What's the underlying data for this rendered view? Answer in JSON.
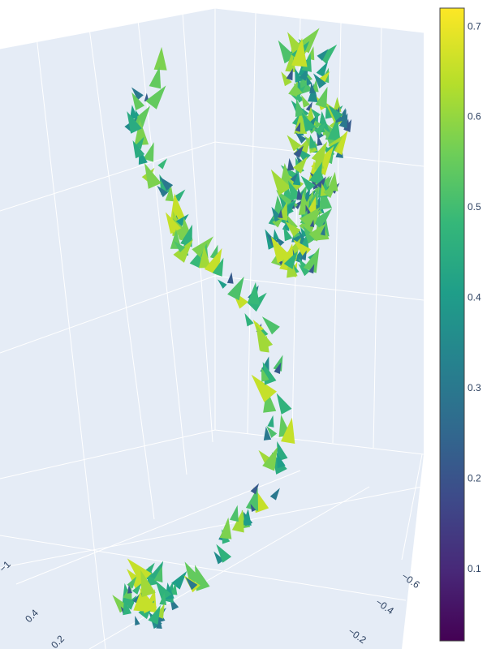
{
  "chart_data": {
    "type": "cone",
    "title": "",
    "scene": {
      "background": "#e5ecf6",
      "gridcolor": "#ffffff",
      "axis_a_ticks": [
        "−1",
        "0.4",
        "0.2"
      ],
      "axis_b_ticks": [
        "−0.6",
        "−0.4",
        "−0.2"
      ]
    },
    "colorbar": {
      "colorscale": "Viridis",
      "range": [
        0.02,
        0.72
      ],
      "ticks": [
        0.1,
        0.2,
        0.3,
        0.4,
        0.5,
        0.6,
        0.7
      ],
      "tick_labels": [
        "0.1",
        "0.2",
        "0.3",
        "0.4",
        "0.5",
        "0.6",
        "0.7"
      ]
    },
    "cones": [
      {
        "value": 0.45
      },
      {
        "value": 0.52
      },
      {
        "value": 0.58
      },
      {
        "value": 0.41
      },
      {
        "value": 0.36
      },
      {
        "value": 0.49
      },
      {
        "value": 0.55
      },
      {
        "value": 0.62
      },
      {
        "value": 0.3
      },
      {
        "value": 0.22
      },
      {
        "value": 0.47
      },
      {
        "value": 0.66
      }
    ]
  }
}
